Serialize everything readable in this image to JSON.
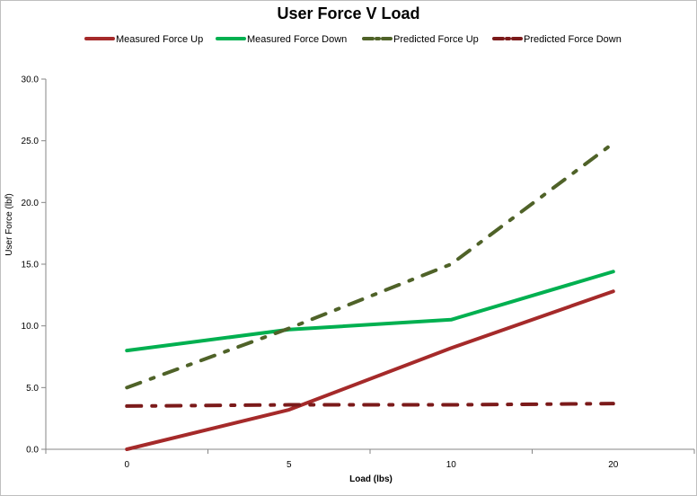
{
  "chart_data": {
    "type": "line",
    "title": "User Force V Load",
    "xlabel": "Load (lbs)",
    "ylabel": "User Force (lbf)",
    "categories": [
      "0",
      "5",
      "10",
      "20"
    ],
    "ylim": [
      0,
      30
    ],
    "y_ticks": [
      "0.0",
      "5.0",
      "10.0",
      "15.0",
      "20.0",
      "25.0",
      "30.0"
    ],
    "grid": false,
    "legend_position": "top",
    "series": [
      {
        "name": "Measured Force Up",
        "values": [
          0.0,
          3.2,
          8.2,
          12.8
        ],
        "color": "#a52a2a",
        "dash": "solid"
      },
      {
        "name": "Measured Force Down",
        "values": [
          8.0,
          9.7,
          10.5,
          14.4
        ],
        "color": "#00b050",
        "dash": "solid"
      },
      {
        "name": "Predicted Force Up",
        "values": [
          5.0,
          9.8,
          15.0,
          24.8
        ],
        "color": "#4f6228",
        "dash": "dashdot"
      },
      {
        "name": "Predicted Force Down",
        "values": [
          3.5,
          3.6,
          3.6,
          3.7
        ],
        "color": "#7b1a1a",
        "dash": "dashdot"
      }
    ]
  }
}
